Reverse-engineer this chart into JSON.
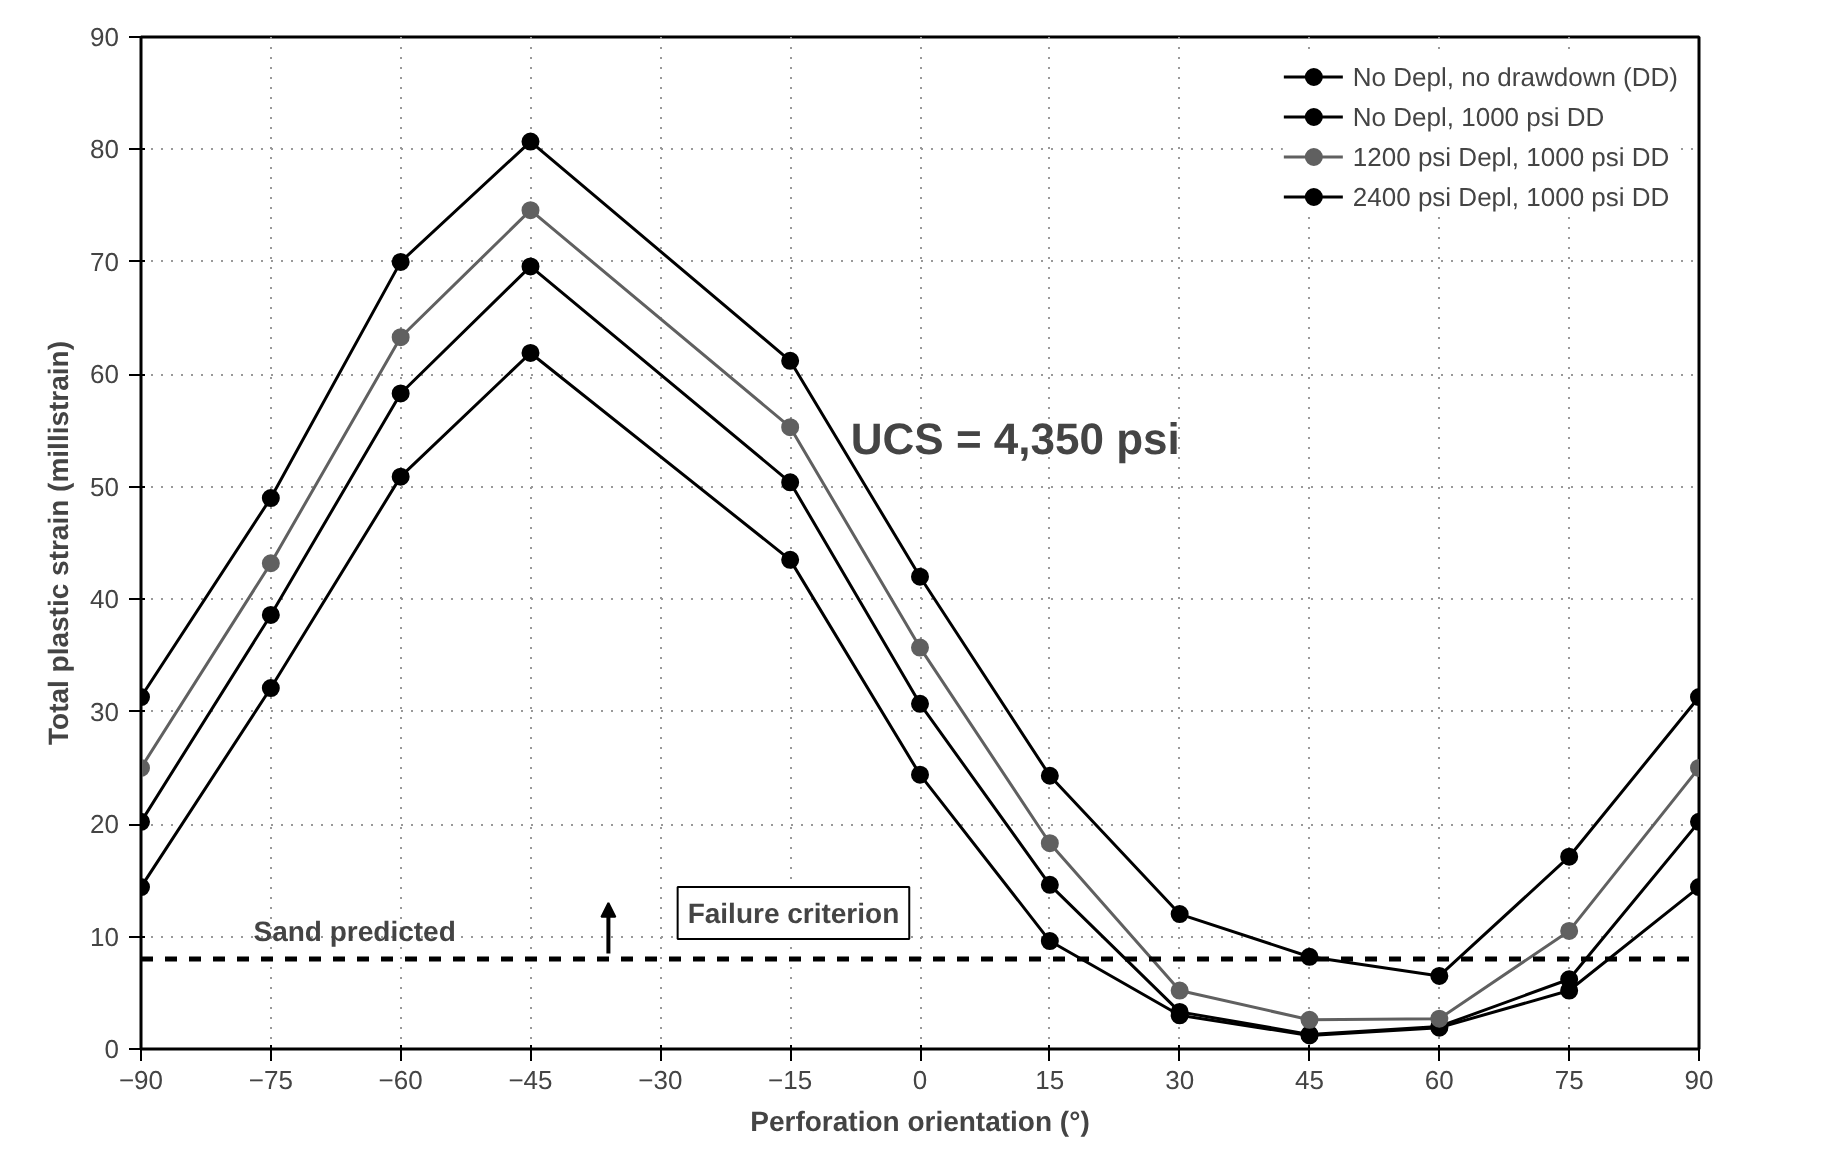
{
  "chart_data": {
    "type": "line",
    "xlabel": "Perforation orientation (°)",
    "ylabel": "Total plastic strain (millistrain)",
    "x": [
      -90,
      -75,
      -60,
      -45,
      -15,
      0,
      15,
      30,
      45,
      60,
      75,
      90
    ],
    "series": [
      {
        "name": "No Depl, no drawdown (DD)",
        "color": "#000000",
        "values": [
          14.4,
          32.1,
          50.9,
          61.9,
          43.5,
          24.4,
          9.6,
          3.0,
          1.2,
          1.9,
          5.2,
          14.4
        ]
      },
      {
        "name": "No Depl, 1000 psi DD",
        "color": "#000000",
        "values": [
          20.2,
          38.6,
          58.3,
          69.6,
          50.4,
          30.7,
          14.6,
          3.3,
          1.3,
          2.0,
          6.2,
          20.2
        ]
      },
      {
        "name": "1200 psi Depl, 1000 psi DD",
        "color": "#606060",
        "values": [
          25,
          43.2,
          63.3,
          74.6,
          55.3,
          35.7,
          18.3,
          5.2,
          2.6,
          2.7,
          10.5,
          25
        ]
      },
      {
        "name": "2400 psi Depl, 1000 psi DD",
        "color": "#000000",
        "values": [
          31.3,
          49,
          70,
          80.7,
          61.2,
          42,
          24.3,
          12,
          8.2,
          6.5,
          17.1,
          31.3
        ]
      }
    ],
    "xlim": [
      -90,
      90
    ],
    "xticks": [
      -90,
      -75,
      -60,
      -45,
      -30,
      -15,
      0,
      15,
      30,
      45,
      60,
      75,
      90
    ],
    "ylim": [
      0,
      90
    ],
    "yticks": [
      0,
      10,
      20,
      30,
      40,
      50,
      60,
      70,
      80,
      90
    ],
    "ref_lines": [
      {
        "axis": "y",
        "value": 8,
        "label": "Failure criterion",
        "color": "#000000",
        "line_style": "dashed"
      }
    ],
    "annotations": [
      "UCS = 4,350 psi",
      "Sand predicted"
    ],
    "grid": true,
    "legend": "top right",
    "marker": "circle",
    "line_style": "solid"
  }
}
